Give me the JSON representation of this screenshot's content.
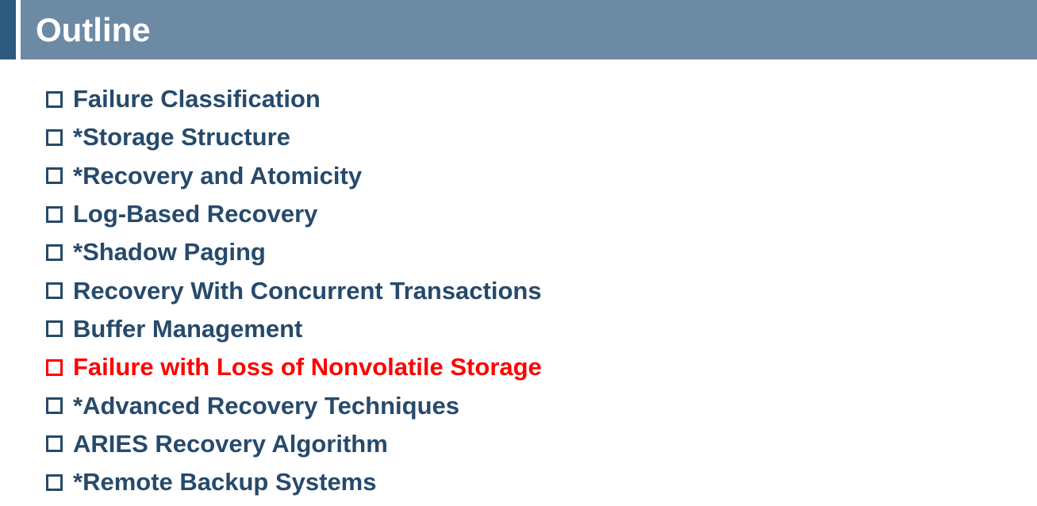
{
  "slide": {
    "title": "Outline",
    "colors": {
      "title_band": "#6c8aa4",
      "title_accent": "#2f5a80",
      "item_text": "#264a6b",
      "highlight": "#ff0000"
    },
    "items": [
      {
        "label": "Failure Classification",
        "highlighted": false,
        "icon": "square-bullet-icon"
      },
      {
        "label": "*Storage Structure",
        "highlighted": false,
        "icon": "square-bullet-icon"
      },
      {
        "label": "*Recovery and Atomicity",
        "highlighted": false,
        "icon": "square-bullet-icon"
      },
      {
        "label": "Log-Based Recovery",
        "highlighted": false,
        "icon": "square-bullet-icon"
      },
      {
        "label": "*Shadow Paging",
        "highlighted": false,
        "icon": "square-bullet-icon"
      },
      {
        "label": "Recovery With Concurrent Transactions",
        "highlighted": false,
        "icon": "square-bullet-icon"
      },
      {
        "label": "Buffer Management",
        "highlighted": false,
        "icon": "square-bullet-icon"
      },
      {
        "label": "Failure with Loss of Nonvolatile Storage",
        "highlighted": true,
        "icon": "square-bullet-icon"
      },
      {
        "label": "*Advanced Recovery Techniques",
        "highlighted": false,
        "icon": "square-bullet-icon"
      },
      {
        "label": "ARIES Recovery Algorithm",
        "highlighted": false,
        "icon": "square-bullet-icon"
      },
      {
        "label": "*Remote Backup Systems",
        "highlighted": false,
        "icon": "square-bullet-icon"
      }
    ]
  }
}
